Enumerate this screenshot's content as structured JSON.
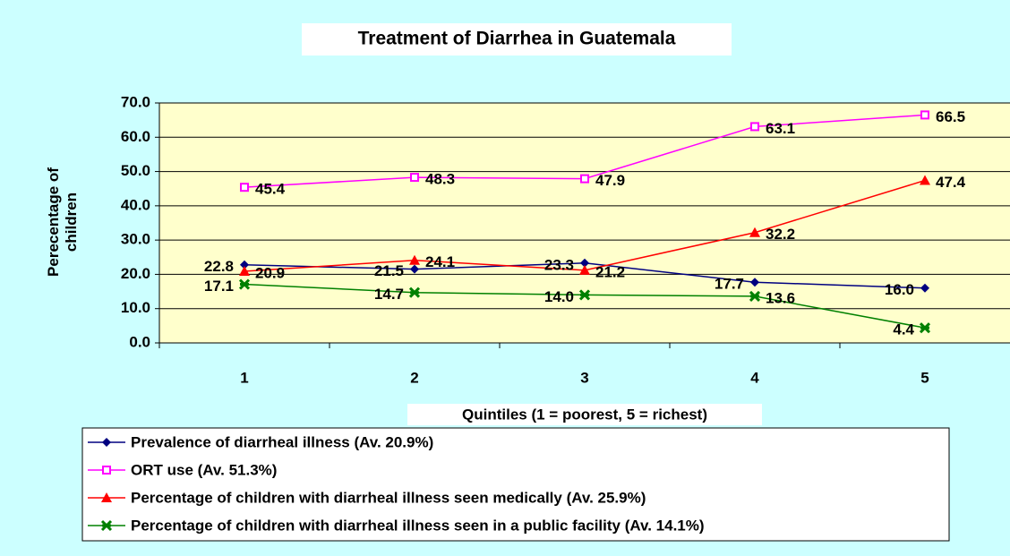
{
  "chart_data": {
    "type": "line",
    "title": "Treatment of Diarrhea in Guatemala",
    "x_label": "Quintiles (1 = poorest, 5 = richest)",
    "y_label": "Perecentage of children",
    "categories": [
      "1",
      "2",
      "3",
      "4",
      "5"
    ],
    "ylim": [
      0,
      70
    ],
    "yticks": [
      {
        "value": 0,
        "label": "0.0"
      },
      {
        "value": 10,
        "label": "10.0"
      },
      {
        "value": 20,
        "label": "20.0"
      },
      {
        "value": 30,
        "label": "30.0"
      },
      {
        "value": 40,
        "label": "40.0"
      },
      {
        "value": 50,
        "label": "50.0"
      },
      {
        "value": 60,
        "label": "60.0"
      },
      {
        "value": 70,
        "label": "70.0"
      }
    ],
    "grid": true,
    "legend": "bottom",
    "series": [
      {
        "name": "Prevalence of diarrheal illness (Av. 20.9%)",
        "color": "#000080",
        "marker": "diamond",
        "values": [
          22.8,
          21.5,
          23.3,
          17.7,
          16
        ],
        "value_labels": [
          "22.8",
          "21.5",
          "23.3",
          "17.7",
          "16.0"
        ]
      },
      {
        "name": "ORT use (Av. 51.3%)",
        "color": "#ff00ff",
        "marker": "square",
        "values": [
          45.4,
          48.3,
          47.9,
          63.1,
          66.5
        ],
        "value_labels": [
          "45.4",
          "48.3",
          "47.9",
          "63.1",
          "66.5"
        ]
      },
      {
        "name": "Percentage of children with diarrheal illness seen medically (Av. 25.9%)",
        "color": "#ff0000",
        "marker": "triangle",
        "values": [
          20.9,
          24.1,
          21.2,
          32.2,
          47.4
        ],
        "value_labels": [
          "20.9",
          "24.1",
          "21.2",
          "32.2",
          "47.4"
        ]
      },
      {
        "name": "Percentage of children with diarrheal illness seen in a public facility (Av. 14.1%)",
        "color": "#008000",
        "marker": "star",
        "values": [
          17.1,
          14.7,
          14,
          13.6,
          4.4
        ],
        "value_labels": [
          "17.1",
          "14.7",
          "14.0",
          "13.6",
          "4.4"
        ]
      }
    ]
  }
}
